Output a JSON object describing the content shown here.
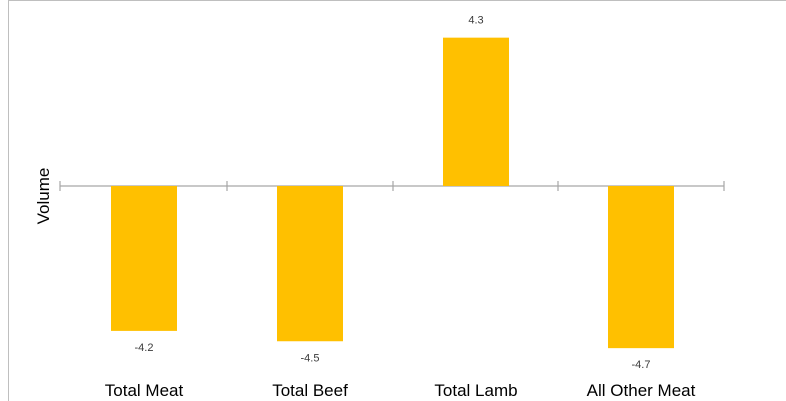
{
  "chart_data": {
    "type": "bar",
    "title": "",
    "xlabel": "",
    "ylabel": "Volume",
    "categories": [
      "Total Meat",
      "Total Beef",
      "Total Lamb",
      "All Other Meat"
    ],
    "values": [
      -4.2,
      -4.5,
      4.3,
      -4.7
    ],
    "value_labels": [
      "-4.2",
      "-4.5",
      "4.3",
      "-4.7"
    ],
    "bar_color": "#FFC000",
    "axis_color": "#A6A6A6",
    "grid": false,
    "legend": "none"
  }
}
